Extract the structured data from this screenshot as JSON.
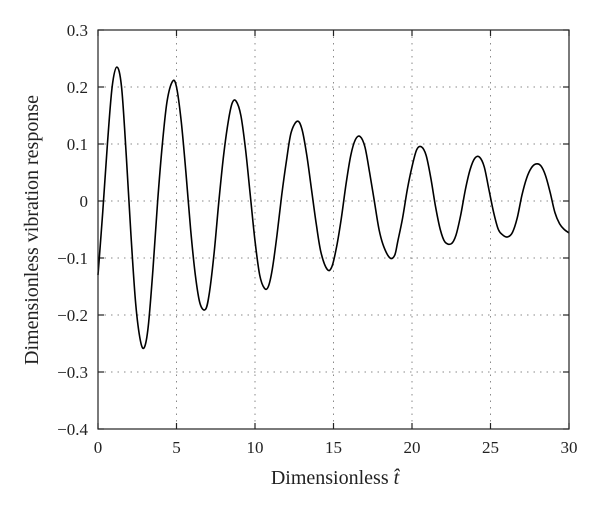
{
  "chart_data": {
    "type": "line",
    "title": "",
    "xlabel": "Dimensionless",
    "xlabel_symbol": "t̂",
    "ylabel": "Dimensionless vibration response",
    "xlim": [
      0,
      30
    ],
    "ylim": [
      -0.4,
      0.3
    ],
    "x_ticks": [
      0,
      5,
      10,
      15,
      20,
      25,
      30
    ],
    "x_tick_labels": [
      "0",
      "5",
      "10",
      "15",
      "20",
      "25",
      "30"
    ],
    "y_ticks": [
      -0.4,
      -0.3,
      -0.2,
      -0.1,
      0,
      0.1,
      0.2,
      0.3
    ],
    "y_tick_labels": [
      "−0.4",
      "−0.3",
      "−0.2",
      "−0.1",
      "0",
      "0.1",
      "0.2",
      "0.3"
    ],
    "grid": true,
    "legend": "none",
    "line_color": "#000000",
    "series": [
      {
        "x": [
          0,
          0.3,
          0.6,
          0.9,
          1.2,
          1.5,
          1.8,
          2.1,
          2.4,
          2.7,
          2.95,
          3.2,
          3.5,
          3.8,
          4.1,
          4.4,
          4.75,
          5.0,
          5.3,
          5.6,
          5.9,
          6.2,
          6.5,
          6.85,
          7.1,
          7.4,
          7.7,
          8.0,
          8.3,
          8.55,
          8.8,
          9.1,
          9.4,
          9.7,
          10.0,
          10.3,
          10.6,
          10.85,
          11.1,
          11.4,
          11.7,
          12.0,
          12.3,
          12.7,
          13.0,
          13.3,
          13.6,
          13.9,
          14.2,
          14.6,
          14.9,
          15.2,
          15.5,
          15.8,
          16.1,
          16.4,
          16.7,
          17.0,
          17.3,
          17.6,
          17.9,
          18.2,
          18.6,
          18.9,
          19.1,
          19.4,
          19.7,
          20.0,
          20.3,
          20.6,
          20.9,
          21.2,
          21.5,
          21.8,
          22.1,
          22.5,
          22.8,
          23.1,
          23.4,
          23.7,
          24.0,
          24.3,
          24.6,
          24.9,
          25.2,
          25.5,
          25.8,
          26.1,
          26.4,
          26.7,
          27.0,
          27.3,
          27.6,
          27.9,
          28.2,
          28.5,
          28.8,
          29.1,
          29.4,
          29.7,
          30.0
        ],
        "y": [
          -0.13,
          -0.02,
          0.1,
          0.2,
          0.235,
          0.2,
          0.08,
          -0.06,
          -0.18,
          -0.245,
          -0.257,
          -0.22,
          -0.12,
          0.0,
          0.1,
          0.175,
          0.21,
          0.2,
          0.14,
          0.05,
          -0.05,
          -0.13,
          -0.18,
          -0.19,
          -0.16,
          -0.09,
          0.0,
          0.08,
          0.14,
          0.172,
          0.175,
          0.15,
          0.09,
          0.01,
          -0.07,
          -0.13,
          -0.153,
          -0.15,
          -0.12,
          -0.06,
          0.01,
          0.07,
          0.12,
          0.14,
          0.125,
          0.08,
          0.02,
          -0.04,
          -0.09,
          -0.12,
          -0.115,
          -0.08,
          -0.03,
          0.03,
          0.08,
          0.108,
          0.113,
          0.095,
          0.05,
          0.0,
          -0.05,
          -0.08,
          -0.1,
          -0.095,
          -0.07,
          -0.03,
          0.02,
          0.06,
          0.09,
          0.095,
          0.08,
          0.04,
          -0.01,
          -0.05,
          -0.072,
          -0.075,
          -0.06,
          -0.025,
          0.02,
          0.055,
          0.075,
          0.077,
          0.06,
          0.02,
          -0.02,
          -0.05,
          -0.06,
          -0.063,
          -0.055,
          -0.03,
          0.01,
          0.04,
          0.058,
          0.065,
          0.062,
          0.045,
          0.015,
          -0.02,
          -0.04,
          -0.05,
          -0.056
        ]
      }
    ]
  }
}
